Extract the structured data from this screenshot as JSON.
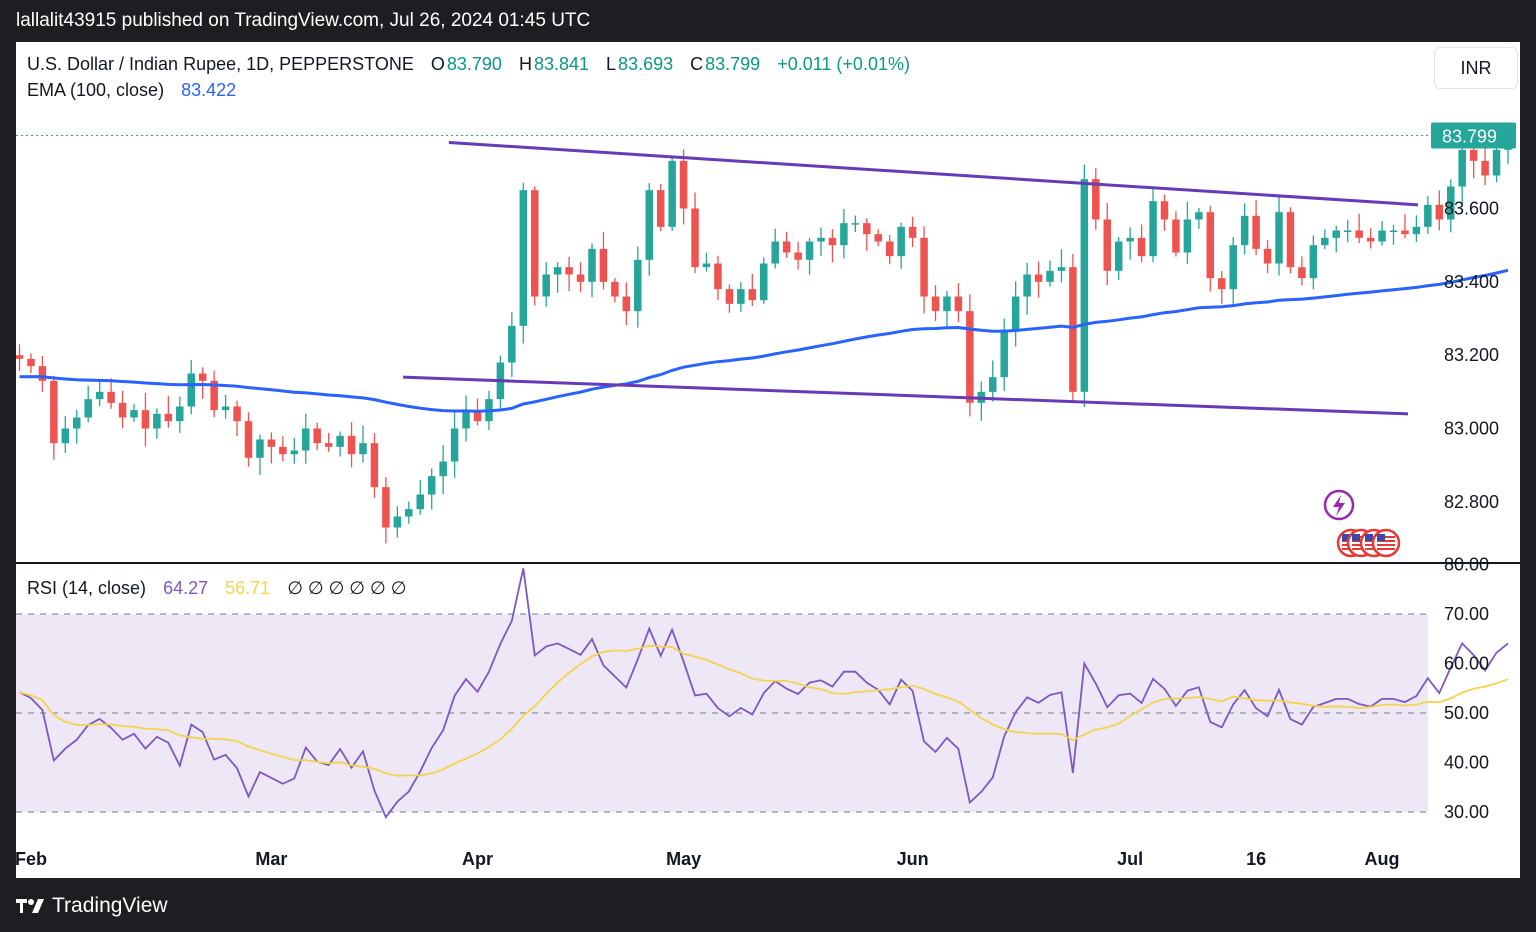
{
  "header": {
    "caption": "lallalit43915 published on TradingView.com, Jul 26, 2024 01:45 UTC"
  },
  "legend": {
    "symbol": "U.S. Dollar / Indian Rupee, 1D, PEPPERSTONE",
    "o_label": "O",
    "o_value": "83.790",
    "h_label": "H",
    "h_value": "83.841",
    "l_label": "L",
    "l_value": "83.693",
    "c_label": "C",
    "c_value": "83.799",
    "change": "+0.011 (+0.01%)",
    "ema_label": "EMA (100, close)",
    "ema_value": "83.422",
    "rsi_label": "RSI (14, close)",
    "rsi_value": "64.27",
    "rsi_ma_value": "56.71",
    "rsi_empty_marks": [
      "∅",
      "∅",
      "∅",
      "∅",
      "∅",
      "∅"
    ]
  },
  "currency_button": "INR",
  "last_price_tag": "83.799",
  "colors": {
    "up": "#26a69a",
    "down": "#ef5350",
    "ema": "#2962ff",
    "channel": "#673ab7",
    "rsi": "#7e57c2",
    "rsi_ma": "#f5d34c",
    "rsi_band": "#ede7f6",
    "price_tag": "#26a69a"
  },
  "icons": [
    "lightning-event-icon",
    "us-flag-event-icon"
  ],
  "footer": {
    "brand": "TradingView"
  },
  "chart_data": {
    "type": "candlestick",
    "symbol": "USDINR",
    "timeframe": "1D",
    "price_axis": {
      "ticks": [
        "83.600",
        "83.400",
        "83.200",
        "83.000",
        "82.800"
      ],
      "tick_values": [
        83.6,
        83.4,
        83.2,
        83.0,
        82.8
      ],
      "range": [
        82.7,
        84.05
      ]
    },
    "rsi_axis": {
      "ticks": [
        "80.00",
        "70.00",
        "60.00",
        "50.00",
        "40.00",
        "30.00"
      ],
      "tick_values": [
        80,
        70,
        60,
        50,
        40,
        30
      ],
      "range": [
        27,
        80
      ],
      "band": [
        30,
        70
      ]
    },
    "x_ticks": [
      {
        "label": "Feb",
        "bar": 1
      },
      {
        "label": "Mar",
        "bar": 22
      },
      {
        "label": "Apr",
        "bar": 40
      },
      {
        "label": "May",
        "bar": 58
      },
      {
        "label": "Jun",
        "bar": 78
      },
      {
        "label": "Jul",
        "bar": 97
      },
      {
        "label": "16",
        "bar": 108
      },
      {
        "label": "Aug",
        "bar": 119
      }
    ],
    "closes": [
      83.19,
      83.17,
      83.13,
      82.96,
      83.0,
      83.03,
      83.08,
      83.1,
      83.07,
      83.03,
      83.05,
      83.0,
      83.04,
      83.02,
      83.06,
      83.15,
      83.13,
      83.05,
      83.06,
      83.02,
      82.92,
      82.97,
      82.95,
      82.93,
      82.94,
      83.0,
      82.96,
      82.95,
      82.98,
      82.93,
      82.96,
      82.84,
      82.73,
      82.76,
      82.78,
      82.82,
      82.87,
      82.91,
      83.0,
      83.05,
      83.02,
      83.08,
      83.18,
      83.28,
      83.65,
      83.36,
      83.42,
      83.44,
      83.42,
      83.4,
      83.49,
      83.4,
      83.36,
      83.32,
      83.46,
      83.65,
      83.55,
      83.73,
      83.6,
      83.44,
      83.45,
      83.38,
      83.34,
      83.38,
      83.35,
      83.45,
      83.51,
      83.48,
      83.46,
      83.51,
      83.52,
      83.5,
      83.56,
      83.56,
      83.53,
      83.51,
      83.47,
      83.55,
      83.52,
      83.36,
      83.32,
      83.36,
      83.32,
      83.07,
      83.1,
      83.14,
      83.27,
      83.36,
      83.42,
      83.4,
      83.43,
      83.44,
      83.1,
      83.68,
      83.57,
      83.43,
      83.51,
      83.52,
      83.47,
      83.62,
      83.57,
      83.48,
      83.57,
      83.59,
      83.41,
      83.38,
      83.5,
      83.58,
      83.49,
      83.45,
      83.59,
      83.44,
      83.41,
      83.5,
      83.52,
      83.54,
      83.54,
      83.52,
      83.51,
      83.54,
      83.54,
      83.53,
      83.55,
      83.61,
      83.57,
      83.66,
      83.76,
      83.73,
      83.69,
      83.76,
      83.799
    ]
  }
}
